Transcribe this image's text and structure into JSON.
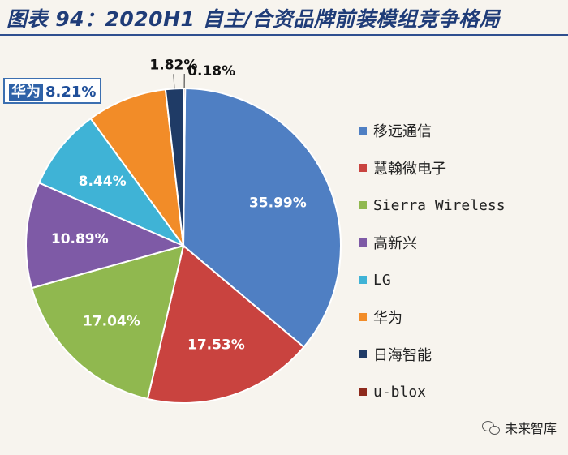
{
  "title": "图表 94：2020H1 自主/合资品牌前装模组竞争格局",
  "callout": {
    "name": "华为",
    "value": "8.21%"
  },
  "watermark": "未来智库",
  "colors": {
    "background": "#f7f4ee",
    "title": "#1f3c78"
  },
  "chart_data": {
    "type": "pie",
    "title": "图表 94：2020H1 自主/合资品牌前装模组竞争格局",
    "legend_position": "right",
    "slices": [
      {
        "label": "移远通信",
        "value": 35.99,
        "display": "35.99%",
        "color": "#4f7fc3"
      },
      {
        "label": "慧翰微电子",
        "value": 17.53,
        "display": "17.53%",
        "color": "#c9433f"
      },
      {
        "label": "Sierra Wireless",
        "value": 17.04,
        "display": "17.04%",
        "color": "#90b84f"
      },
      {
        "label": "高新兴",
        "value": 10.89,
        "display": "10.89%",
        "color": "#7e5aa6"
      },
      {
        "label": "LG",
        "value": 8.44,
        "display": "8.44%",
        "color": "#3fb3d6"
      },
      {
        "label": "华为",
        "value": 8.21,
        "display": "",
        "color": "#f28c28"
      },
      {
        "label": "日海智能",
        "value": 1.82,
        "display": "1.82%",
        "color": "#1f3b66"
      },
      {
        "label": "u-blox",
        "value": 0.18,
        "display": "0.18%",
        "color": "#8e2a1c"
      }
    ]
  }
}
